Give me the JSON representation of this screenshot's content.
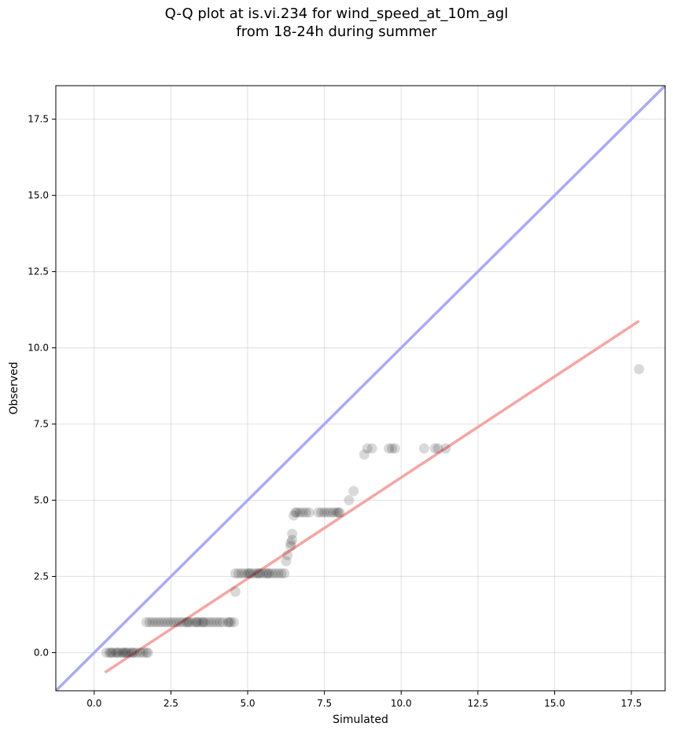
{
  "chart_data": {
    "type": "scatter",
    "title": [
      "Q-Q plot at is.vi.234 for wind_speed_at_10m_agl",
      "from 18-24h during summer"
    ],
    "xlabel": "Simulated",
    "ylabel": "Observed",
    "xlim": [
      -1.25,
      18.6
    ],
    "ylim": [
      -1.25,
      18.6
    ],
    "xticks": [
      0.0,
      2.5,
      5.0,
      7.5,
      10.0,
      12.5,
      15.0,
      17.5
    ],
    "yticks": [
      0.0,
      2.5,
      5.0,
      7.5,
      10.0,
      12.5,
      15.0,
      17.5
    ],
    "xtick_labels": [
      "0.0",
      "2.5",
      "5.0",
      "7.5",
      "10.0",
      "12.5",
      "15.0",
      "17.5"
    ],
    "ytick_labels": [
      "0.0",
      "2.5",
      "5.0",
      "7.5",
      "10.0",
      "12.5",
      "15.0",
      "17.5"
    ],
    "grid": true,
    "point_color": "#000000",
    "point_alpha": 0.15,
    "reference_line": {
      "type": "identity",
      "color": "#aaaaf5"
    },
    "fit_line": {
      "color": "#f5a5a5",
      "x": [
        0.35,
        17.75
      ],
      "y": [
        -0.65,
        10.88
      ]
    },
    "points": [
      [
        0.4,
        0.0
      ],
      [
        0.5,
        0.0
      ],
      [
        0.55,
        0.0
      ],
      [
        0.6,
        0.0
      ],
      [
        0.7,
        0.0
      ],
      [
        0.75,
        0.0
      ],
      [
        0.8,
        0.0
      ],
      [
        0.9,
        0.0
      ],
      [
        0.95,
        0.0
      ],
      [
        1.0,
        0.0
      ],
      [
        1.05,
        0.0
      ],
      [
        1.1,
        0.0
      ],
      [
        1.2,
        0.0
      ],
      [
        1.25,
        0.0
      ],
      [
        1.3,
        0.0
      ],
      [
        1.4,
        0.0
      ],
      [
        1.5,
        0.0
      ],
      [
        1.6,
        0.0
      ],
      [
        1.7,
        0.0
      ],
      [
        1.75,
        0.0
      ],
      [
        1.7,
        1.0
      ],
      [
        1.8,
        1.0
      ],
      [
        1.9,
        1.0
      ],
      [
        2.0,
        1.0
      ],
      [
        2.1,
        1.0
      ],
      [
        2.2,
        1.0
      ],
      [
        2.3,
        1.0
      ],
      [
        2.4,
        1.0
      ],
      [
        2.5,
        1.0
      ],
      [
        2.6,
        1.0
      ],
      [
        2.7,
        1.0
      ],
      [
        2.8,
        1.0
      ],
      [
        2.9,
        1.0
      ],
      [
        3.0,
        1.0
      ],
      [
        3.05,
        1.0
      ],
      [
        3.1,
        1.0
      ],
      [
        3.2,
        1.0
      ],
      [
        3.3,
        1.0
      ],
      [
        3.35,
        1.0
      ],
      [
        3.4,
        1.0
      ],
      [
        3.5,
        1.0
      ],
      [
        3.55,
        1.0
      ],
      [
        3.6,
        1.0
      ],
      [
        3.7,
        1.0
      ],
      [
        3.8,
        1.0
      ],
      [
        3.9,
        1.0
      ],
      [
        4.0,
        1.0
      ],
      [
        4.1,
        1.0
      ],
      [
        4.2,
        1.0
      ],
      [
        4.35,
        1.0
      ],
      [
        4.4,
        1.0
      ],
      [
        4.45,
        1.0
      ],
      [
        4.55,
        1.0
      ],
      [
        4.6,
        2.0
      ],
      [
        4.6,
        2.6
      ],
      [
        4.7,
        2.6
      ],
      [
        4.8,
        2.6
      ],
      [
        4.9,
        2.6
      ],
      [
        5.0,
        2.6
      ],
      [
        5.05,
        2.6
      ],
      [
        5.1,
        2.6
      ],
      [
        5.2,
        2.6
      ],
      [
        5.3,
        2.6
      ],
      [
        5.35,
        2.6
      ],
      [
        5.4,
        2.6
      ],
      [
        5.5,
        2.6
      ],
      [
        5.6,
        2.6
      ],
      [
        5.65,
        2.6
      ],
      [
        5.7,
        2.6
      ],
      [
        5.8,
        2.6
      ],
      [
        5.9,
        2.6
      ],
      [
        6.0,
        2.6
      ],
      [
        6.1,
        2.6
      ],
      [
        6.2,
        2.6
      ],
      [
        6.25,
        3.0
      ],
      [
        6.3,
        3.2
      ],
      [
        6.4,
        3.5
      ],
      [
        6.4,
        3.6
      ],
      [
        6.45,
        3.7
      ],
      [
        6.45,
        3.9
      ],
      [
        6.5,
        4.5
      ],
      [
        6.55,
        4.6
      ],
      [
        6.6,
        4.6
      ],
      [
        6.7,
        4.6
      ],
      [
        6.8,
        4.6
      ],
      [
        6.9,
        4.6
      ],
      [
        7.0,
        4.6
      ],
      [
        7.3,
        4.6
      ],
      [
        7.4,
        4.6
      ],
      [
        7.5,
        4.6
      ],
      [
        7.6,
        4.6
      ],
      [
        7.7,
        4.6
      ],
      [
        7.8,
        4.6
      ],
      [
        7.9,
        4.6
      ],
      [
        7.95,
        4.6
      ],
      [
        8.0,
        4.6
      ],
      [
        8.3,
        5.0
      ],
      [
        8.45,
        5.3
      ],
      [
        8.8,
        6.5
      ],
      [
        8.9,
        6.7
      ],
      [
        9.05,
        6.7
      ],
      [
        9.6,
        6.7
      ],
      [
        9.7,
        6.7
      ],
      [
        9.8,
        6.7
      ],
      [
        10.75,
        6.7
      ],
      [
        11.1,
        6.7
      ],
      [
        11.2,
        6.7
      ],
      [
        11.45,
        6.7
      ],
      [
        17.75,
        9.3
      ]
    ]
  }
}
